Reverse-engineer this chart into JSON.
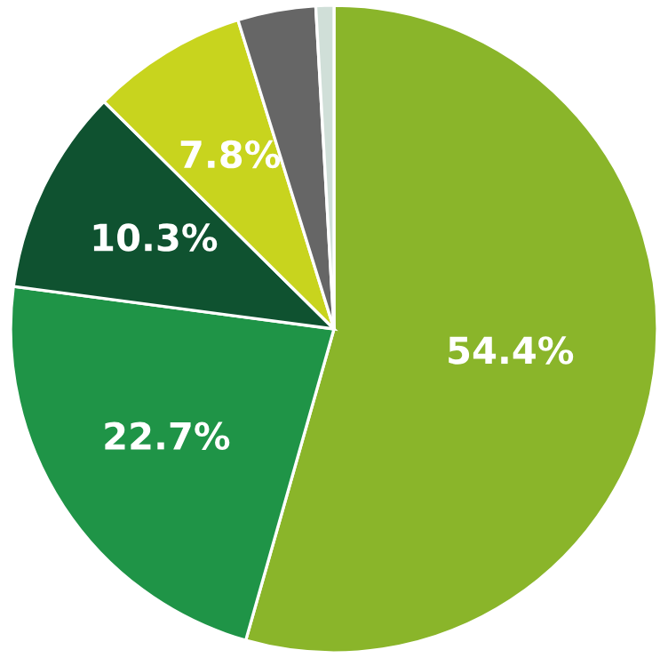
{
  "chart_data": {
    "type": "pie",
    "categories": [
      null,
      null,
      null,
      null,
      null,
      null
    ],
    "values": [
      54.4,
      22.7,
      10.3,
      7.8,
      3.9,
      0.9
    ],
    "colors": [
      "#8ab52a",
      "#1f9447",
      "#0f5230",
      "#c8d41e",
      "#666666",
      "#d0dfd8"
    ],
    "value_labels": [
      "54.4%",
      "22.7%",
      "10.3%",
      "7.8%",
      null,
      null
    ]
  }
}
